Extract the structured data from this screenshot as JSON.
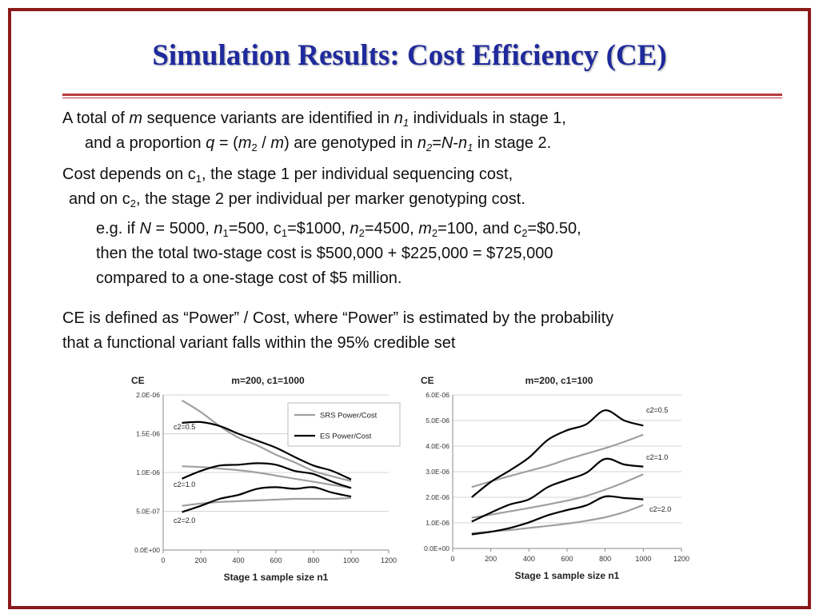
{
  "slide": {
    "title": "Simulation Results: Cost Efficiency (CE)",
    "p1": {
      "l1_a": "A total of ",
      "l1_m": "m",
      "l1_b": " sequence variants are identified in ",
      "l1_n": "n",
      "l1_n_sub": "1",
      "l1_c": " individuals in stage 1,",
      "l2_a": "and a proportion ",
      "l2_q": "q",
      "l2_b": " = (",
      "l2_m": "m",
      "l2_m_sub": "2",
      "l2_c": " / ",
      "l2_m2": "m",
      "l2_d": ") are genotyped in ",
      "l2_n": "n",
      "l2_n_sub": "2",
      "l2_e": "=",
      "l2_N": "N",
      "l2_f": "-",
      "l2_n1": "n",
      "l2_n1_sub": "1",
      "l2_g": " in stage 2."
    },
    "p2": {
      "l1_a": "Cost depends on c",
      "l1_sub": "1",
      "l1_b": ", the stage 1 per individual sequencing cost,",
      "l2_a": "and on c",
      "l2_sub": "2",
      "l2_b": ", the stage 2 per individual per marker genotyping cost."
    },
    "p3": {
      "l1_a": "e.g. if ",
      "l1_N": "N",
      "l1_b": " = 5000, ",
      "l1_n1": "n",
      "l1_n1_sub": "1",
      "l1_c": "=500, c",
      "l1_c1_sub": "1",
      "l1_d": "=$1000, ",
      "l1_n2": "n",
      "l1_n2_sub": "2",
      "l1_e": "=4500, ",
      "l1_m2": "m",
      "l1_m2_sub": "2",
      "l1_f": "=100, and c",
      "l1_c2_sub": "2",
      "l1_g": "=$0.50,",
      "l2": "then the total two-stage cost is $500,000 + $225,000 = $725,000",
      "l3": "compared to a one-stage cost of $5 million."
    },
    "p4": {
      "l1": "CE is defined as “Power” / Cost, where “Power” is estimated by the probability",
      "l2": "that a functional variant falls within the 95% credible set"
    }
  },
  "chart_data": [
    {
      "type": "line",
      "title": "m=200, c1=1000",
      "ylabel": "CE",
      "xlabel": "Stage 1 sample size n1",
      "xlim": [
        0,
        1200
      ],
      "ylim": [
        0,
        2e-06
      ],
      "xticks": [
        "0",
        "200",
        "400",
        "600",
        "800",
        "1000",
        "1200"
      ],
      "yticks": [
        "0.0E+00",
        "5.0E-07",
        "1.0E-06",
        "1.5E-06",
        "2.0E-06"
      ],
      "legend": [
        "SRS Power/Cost",
        "ES Power/Cost"
      ],
      "legend_position": "top-right",
      "annotations": [
        "c2=0.5",
        "c2=1.0",
        "c2=2.0"
      ],
      "x": [
        100,
        200,
        300,
        400,
        500,
        600,
        700,
        800,
        900,
        1000
      ],
      "series": [
        {
          "name": "SRS Power/Cost",
          "group": "c2=0.5",
          "color": "#a0a0a0",
          "values": [
            1.93e-06,
            1.78e-06,
            1.6e-06,
            1.45e-06,
            1.35e-06,
            1.23e-06,
            1.13e-06,
            1.02e-06,
            9.5e-07,
            8.9e-07
          ]
        },
        {
          "name": "ES Power/Cost",
          "group": "c2=0.5",
          "color": "#000000",
          "values": [
            1.64e-06,
            1.65e-06,
            1.6e-06,
            1.5e-06,
            1.41e-06,
            1.32e-06,
            1.2e-06,
            1.09e-06,
            1.02e-06,
            9.1e-07
          ]
        },
        {
          "name": "SRS Power/Cost",
          "group": "c2=1.0",
          "color": "#a0a0a0",
          "values": [
            1.08e-06,
            1.07e-06,
            1.05e-06,
            1.03e-06,
            1e-06,
            9.6e-07,
            9.2e-07,
            8.8e-07,
            8.4e-07,
            8e-07
          ]
        },
        {
          "name": "ES Power/Cost",
          "group": "c2=1.0",
          "color": "#000000",
          "values": [
            9.2e-07,
            1.02e-06,
            1.09e-06,
            1.1e-06,
            1.12e-06,
            1.1e-06,
            1.02e-06,
            9.8e-07,
            8.8e-07,
            8e-07
          ]
        },
        {
          "name": "SRS Power/Cost",
          "group": "c2=2.0",
          "color": "#a0a0a0",
          "values": [
            5.7e-07,
            6e-07,
            6.2e-07,
            6.3e-07,
            6.4e-07,
            6.5e-07,
            6.6e-07,
            6.6e-07,
            6.6e-07,
            6.7e-07
          ]
        },
        {
          "name": "ES Power/Cost",
          "group": "c2=2.0",
          "color": "#000000",
          "values": [
            4.9e-07,
            5.7e-07,
            6.6e-07,
            7.1e-07,
            7.9e-07,
            8.1e-07,
            7.9e-07,
            8.1e-07,
            7.4e-07,
            6.9e-07
          ]
        }
      ]
    },
    {
      "type": "line",
      "title": "m=200, c1=100",
      "ylabel": "CE",
      "xlabel": "Stage 1 sample size n1",
      "xlim": [
        0,
        1200
      ],
      "ylim": [
        0,
        6e-06
      ],
      "xticks": [
        "0",
        "200",
        "400",
        "600",
        "800",
        "1000",
        "1200"
      ],
      "yticks": [
        "0.0E+00",
        "1.0E-06",
        "2.0E-06",
        "3.0E-06",
        "4.0E-06",
        "5.0E-06",
        "6.0E-06"
      ],
      "annotations": [
        "c2=0.5",
        "c2=1.0",
        "c2=2.0"
      ],
      "x": [
        100,
        200,
        300,
        400,
        500,
        600,
        700,
        800,
        900,
        1000
      ],
      "series": [
        {
          "name": "SRS Power/Cost",
          "group": "c2=0.5",
          "color": "#a0a0a0",
          "values": [
            2.4e-06,
            2.62e-06,
            2.83e-06,
            3.03e-06,
            3.23e-06,
            3.48e-06,
            3.7e-06,
            3.92e-06,
            4.17e-06,
            4.45e-06
          ]
        },
        {
          "name": "ES Power/Cost",
          "group": "c2=0.5",
          "color": "#000000",
          "values": [
            2e-06,
            2.6e-06,
            3.05e-06,
            3.55e-06,
            4.25e-06,
            4.62e-06,
            4.85e-06,
            5.4e-06,
            5e-06,
            4.8e-06
          ]
        },
        {
          "name": "SRS Power/Cost",
          "group": "c2=1.0",
          "color": "#a0a0a0",
          "values": [
            1.2e-06,
            1.32e-06,
            1.45e-06,
            1.58e-06,
            1.72e-06,
            1.87e-06,
            2.05e-06,
            2.3e-06,
            2.58e-06,
            2.9e-06
          ]
        },
        {
          "name": "ES Power/Cost",
          "group": "c2=1.0",
          "color": "#000000",
          "values": [
            1.05e-06,
            1.4e-06,
            1.72e-06,
            1.92e-06,
            2.4e-06,
            2.68e-06,
            2.95e-06,
            3.5e-06,
            3.28e-06,
            3.2e-06
          ]
        },
        {
          "name": "SRS Power/Cost",
          "group": "c2=2.0",
          "color": "#a0a0a0",
          "values": [
            6e-07,
            6.6e-07,
            7.2e-07,
            8e-07,
            8.8e-07,
            9.7e-07,
            1.08e-06,
            1.22e-06,
            1.42e-06,
            1.7e-06
          ]
        },
        {
          "name": "ES Power/Cost",
          "group": "c2=2.0",
          "color": "#000000",
          "values": [
            5.5e-07,
            6.5e-07,
            8e-07,
            1.02e-06,
            1.3e-06,
            1.5e-06,
            1.68e-06,
            2.03e-06,
            1.97e-06,
            1.92e-06
          ]
        }
      ]
    }
  ]
}
